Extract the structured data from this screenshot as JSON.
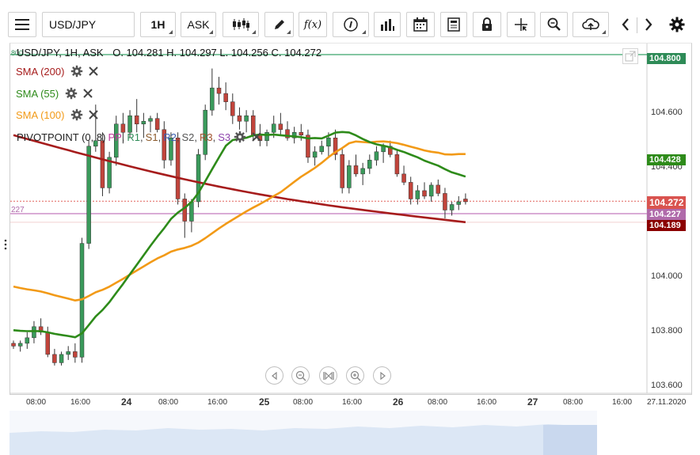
{
  "toolbar": {
    "symbol": "USD/JPY",
    "timeframe": "1H",
    "price_type": "ASK",
    "fx_label": "f(x)",
    "icons": [
      "menu-icon",
      "candlestick-type-icon",
      "draw-pencil-icon",
      "function-icon",
      "info-icon",
      "volume-bars-icon",
      "calendar-icon",
      "news-icon",
      "lock-icon",
      "crosshair-icon",
      "zoom-icon",
      "cloud-upload-icon",
      "chevron-left-icon",
      "chevron-right-icon",
      "settings-gear-icon"
    ]
  },
  "chart": {
    "ohlc_symbol": "USD/JPY, 1H, ASK",
    "open_label": "O. 104.281",
    "high_label": "H. 104.297",
    "low_label": "L. 104.256",
    "close_label": "C. 104.272",
    "top_left_mark": "800",
    "pivot_left_mark": "227",
    "indicators": [
      {
        "label": "SMA (200)",
        "color": "#a61c1c"
      },
      {
        "label": "SMA (55)",
        "color": "#2e8b1a"
      },
      {
        "label": "SMA (100)",
        "color": "#f29a17"
      }
    ],
    "pivot": {
      "name": "PIVOTPOINT (0, 8)",
      "parts": [
        {
          "text": "PP",
          "color": "#c0399b"
        },
        {
          "text": "R1",
          "color": "#2e8b57"
        },
        {
          "text": "S1",
          "color": "#8b5a2b"
        },
        {
          "text": "R2",
          "color": "#3b5fb3"
        },
        {
          "text": "S2",
          "color": "#555555"
        },
        {
          "text": "R3",
          "color": "#a0522d"
        },
        {
          "text": "S3",
          "color": "#8e44ad"
        }
      ]
    },
    "price_axis": {
      "labels": [
        "104.600",
        "104.400",
        "104.000",
        "103.800",
        "103.600"
      ]
    },
    "price_tags": [
      {
        "label": "104.800",
        "color": "#2e8b57"
      },
      {
        "label": "104.428",
        "color": "#2e8b1a"
      },
      {
        "label": "104.272",
        "color": "#d9534f"
      },
      {
        "label": "104.227",
        "color": "#b06aaa"
      },
      {
        "label": "104.189",
        "color": "#8b0000"
      }
    ],
    "time_axis": {
      "labels": [
        "08:00",
        "16:00",
        "24",
        "08:00",
        "16:00",
        "25",
        "08:00",
        "16:00",
        "26",
        "08:00",
        "16:00",
        "27",
        "08:00",
        "16:00",
        "27.11.2020"
      ]
    }
  },
  "chart_data": {
    "type": "candlestick",
    "symbol": "USD/JPY",
    "interval": "1H",
    "ylim": [
      103.58,
      104.84
    ],
    "current": {
      "open": 104.281,
      "high": 104.297,
      "low": 104.256,
      "close": 104.272
    },
    "levels": {
      "r_line": 104.8,
      "pp_line": 104.227,
      "last": 104.272
    },
    "candles": [
      [
        103.76,
        103.77,
        103.74,
        103.75
      ],
      [
        103.75,
        103.77,
        103.73,
        103.76
      ],
      [
        103.76,
        103.8,
        103.74,
        103.78
      ],
      [
        103.78,
        103.84,
        103.76,
        103.82
      ],
      [
        103.82,
        103.85,
        103.79,
        103.8
      ],
      [
        103.8,
        103.82,
        103.71,
        103.72
      ],
      [
        103.72,
        103.74,
        103.68,
        103.69
      ],
      [
        103.69,
        103.73,
        103.68,
        103.72
      ],
      [
        103.72,
        103.75,
        103.7,
        103.73
      ],
      [
        103.73,
        103.76,
        103.69,
        103.71
      ],
      [
        103.71,
        104.14,
        103.69,
        104.12
      ],
      [
        104.12,
        104.49,
        104.1,
        104.47
      ],
      [
        104.47,
        104.62,
        104.45,
        104.49
      ],
      [
        104.49,
        104.52,
        104.29,
        104.32
      ],
      [
        104.32,
        104.45,
        104.3,
        104.43
      ],
      [
        104.43,
        104.58,
        104.4,
        104.55
      ],
      [
        104.55,
        104.59,
        104.48,
        104.52
      ],
      [
        104.52,
        104.6,
        104.5,
        104.58
      ],
      [
        104.58,
        104.64,
        104.52,
        104.55
      ],
      [
        104.55,
        104.59,
        104.5,
        104.56
      ],
      [
        104.56,
        104.58,
        104.52,
        104.57
      ],
      [
        104.57,
        104.59,
        104.52,
        104.53
      ],
      [
        104.53,
        104.56,
        104.39,
        104.42
      ],
      [
        104.42,
        104.52,
        104.4,
        104.5
      ],
      [
        104.5,
        104.52,
        104.26,
        104.28
      ],
      [
        104.28,
        104.3,
        104.14,
        104.2
      ],
      [
        104.2,
        104.28,
        104.16,
        104.27
      ],
      [
        104.27,
        104.46,
        104.25,
        104.44
      ],
      [
        104.44,
        104.62,
        104.42,
        104.6
      ],
      [
        104.6,
        104.75,
        104.58,
        104.68
      ],
      [
        104.68,
        104.72,
        104.62,
        104.66
      ],
      [
        104.66,
        104.7,
        104.6,
        104.63
      ],
      [
        104.63,
        104.66,
        104.55,
        104.58
      ],
      [
        104.58,
        104.61,
        104.53,
        104.56
      ],
      [
        104.56,
        104.6,
        104.52,
        104.58
      ],
      [
        104.58,
        104.6,
        104.49,
        104.51
      ],
      [
        104.51,
        104.55,
        104.47,
        104.49
      ],
      [
        104.49,
        104.53,
        104.47,
        104.52
      ],
      [
        104.52,
        104.58,
        104.5,
        104.55
      ],
      [
        104.55,
        104.59,
        104.51,
        104.53
      ],
      [
        104.53,
        104.56,
        104.49,
        104.5
      ],
      [
        104.5,
        104.54,
        104.48,
        104.52
      ],
      [
        104.52,
        104.55,
        104.49,
        104.51
      ],
      [
        104.51,
        104.53,
        104.41,
        104.43
      ],
      [
        104.43,
        104.47,
        104.4,
        104.45
      ],
      [
        104.45,
        104.49,
        104.44,
        104.47
      ],
      [
        104.47,
        104.52,
        104.43,
        104.5
      ],
      [
        104.5,
        104.53,
        104.42,
        104.44
      ],
      [
        104.44,
        104.46,
        104.3,
        104.32
      ],
      [
        104.32,
        104.42,
        104.3,
        104.4
      ],
      [
        104.4,
        104.44,
        104.36,
        104.37
      ],
      [
        104.37,
        104.41,
        104.33,
        104.39
      ],
      [
        104.39,
        104.44,
        104.37,
        104.42
      ],
      [
        104.42,
        104.47,
        104.4,
        104.45
      ],
      [
        104.45,
        104.48,
        104.41,
        104.47
      ],
      [
        104.47,
        104.49,
        104.43,
        104.44
      ],
      [
        104.44,
        104.46,
        104.36,
        104.37
      ],
      [
        104.37,
        104.4,
        104.33,
        104.34
      ],
      [
        104.34,
        104.36,
        104.26,
        104.28
      ],
      [
        104.28,
        104.33,
        104.26,
        104.31
      ],
      [
        104.31,
        104.34,
        104.28,
        104.29
      ],
      [
        104.29,
        104.34,
        104.27,
        104.33
      ],
      [
        104.33,
        104.35,
        104.29,
        104.3
      ],
      [
        104.3,
        104.32,
        104.21,
        104.24
      ],
      [
        104.24,
        104.27,
        104.22,
        104.26
      ],
      [
        104.26,
        104.29,
        104.24,
        104.27
      ],
      [
        104.28,
        104.3,
        104.26,
        104.27
      ]
    ]
  }
}
